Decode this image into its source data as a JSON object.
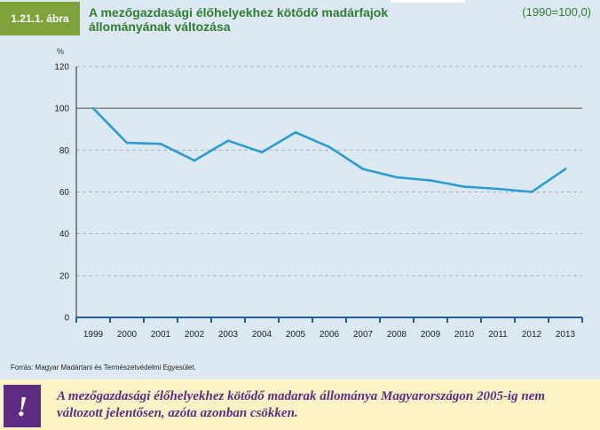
{
  "figure": {
    "number": "1.21.1. ábra",
    "title_line1": "A mezőgazdasági élőhelyekhez kötődő madárfajok",
    "title_line2": "állományának változása",
    "base_note": "(1990=100,0)",
    "unit": "%"
  },
  "source": "Forrás: Magyar Madártani és Természetvédelmi Egyesület.",
  "note": {
    "mark": "!",
    "text": "A mezőgazdasági élőhelyekhez kötődő madarak állománya Magyarországon 2005-ig nem változott jelentősen, azóta azonban csökken."
  },
  "colors": {
    "line": "#2b9bd3",
    "title": "#2f7d32",
    "badge": "#7ea33b",
    "panel": "#dde9f2",
    "note_bg": "#fdf3c4",
    "note_text": "#5c2d82"
  },
  "chart_data": {
    "type": "line",
    "title": "A mezőgazdasági élőhelyekhez kötődő madárfajok állományának változása",
    "ylabel": "%",
    "ylim": [
      0,
      120
    ],
    "yticks": [
      "0",
      "20",
      "40",
      "60",
      "80",
      "100",
      "120"
    ],
    "categories": [
      "1999",
      "2000",
      "2001",
      "2002",
      "2003",
      "2004",
      "2005",
      "2006",
      "2007",
      "2008",
      "2009",
      "2010",
      "2011",
      "2012",
      "2013"
    ],
    "values": [
      100.0,
      83.5,
      83.0,
      75.0,
      84.5,
      79.0,
      88.5,
      81.5,
      71.0,
      67.0,
      65.5,
      62.5,
      61.5,
      60.0,
      71.0
    ],
    "reference_line": 100,
    "grid": true
  }
}
